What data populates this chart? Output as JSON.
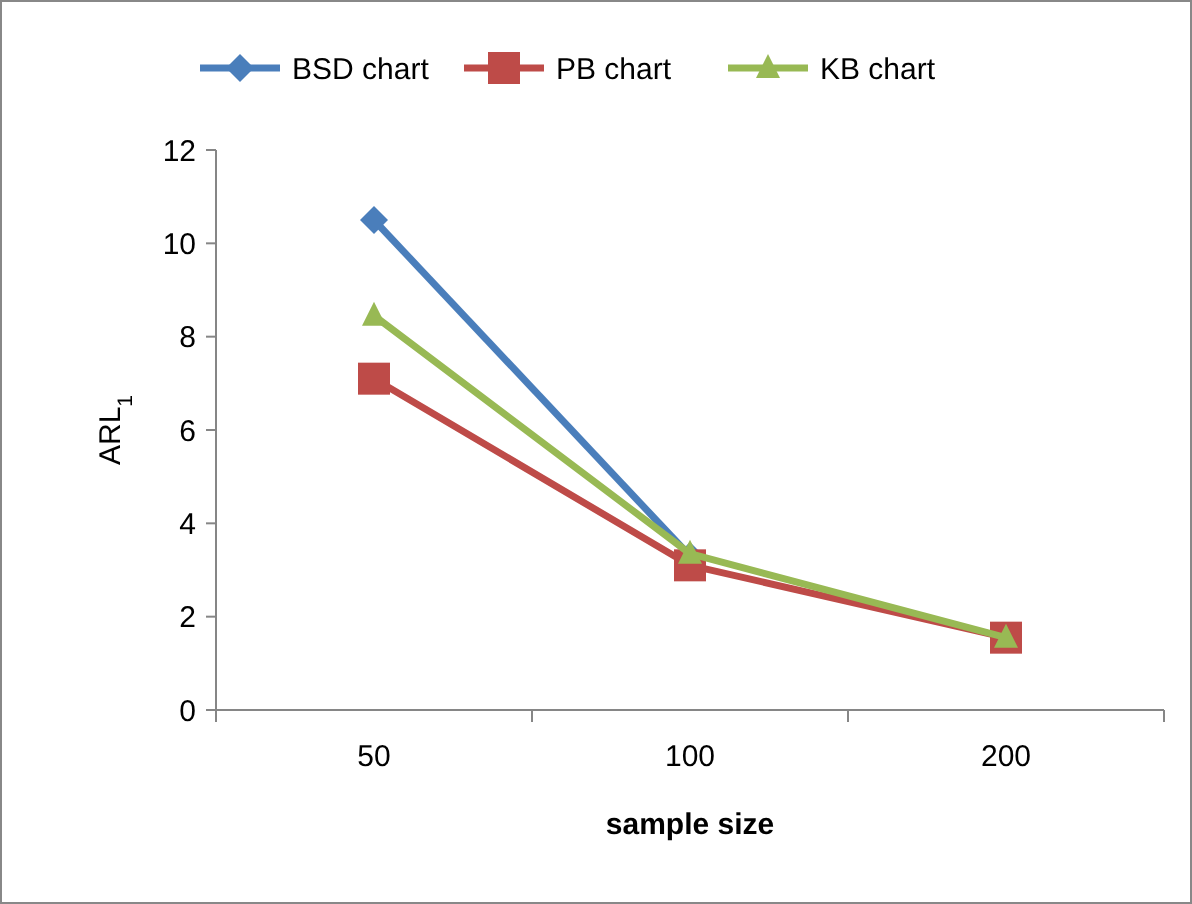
{
  "chart_data": {
    "type": "line",
    "xlabel": "sample size",
    "ylabel": "ARL$_{1}$",
    "categories": [
      "50",
      "100",
      "200"
    ],
    "series": [
      {
        "name": "BSD chart",
        "color": "#4a7ebb",
        "marker": "diamond",
        "values": [
          10.5,
          3.3,
          null
        ]
      },
      {
        "name": "PB chart",
        "color": "#be4b48",
        "marker": "square",
        "values": [
          7.1,
          3.1,
          1.55
        ]
      },
      {
        "name": "KB chart",
        "color": "#98b954",
        "marker": "triangle",
        "values": [
          8.45,
          3.35,
          1.55
        ]
      }
    ],
    "ylim": [
      0,
      12
    ],
    "yticks": [
      0,
      2,
      4,
      6,
      8,
      10,
      12
    ],
    "grid": false,
    "legend": "top",
    "line_style": "solid"
  }
}
